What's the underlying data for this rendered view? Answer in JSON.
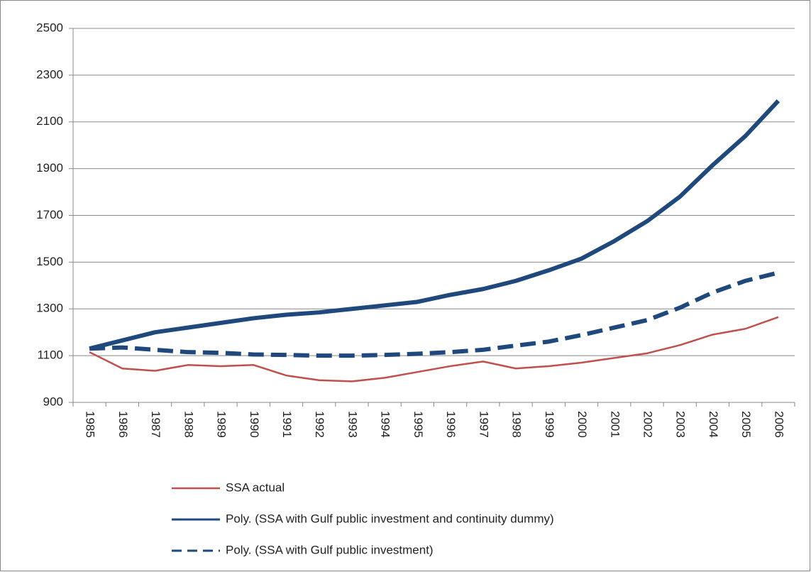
{
  "chart_data": {
    "type": "line",
    "categories": [
      "1985",
      "1986",
      "1987",
      "1988",
      "1989",
      "1990",
      "1991",
      "1992",
      "1993",
      "1994",
      "1995",
      "1996",
      "1997",
      "1998",
      "1999",
      "2000",
      "2001",
      "2002",
      "2003",
      "2004",
      "2005",
      "2006"
    ],
    "series": [
      {
        "name": "SSA actual",
        "color": "#c0504d",
        "style": "solid",
        "width": 2.5,
        "values": [
          1115,
          1045,
          1035,
          1060,
          1055,
          1060,
          1015,
          995,
          990,
          1005,
          1030,
          1055,
          1075,
          1045,
          1055,
          1070,
          1090,
          1110,
          1145,
          1190,
          1215,
          1265
        ]
      },
      {
        "name": "Poly. (SSA with Gulf public investment and continuity dummy)",
        "color": "#1f497d",
        "style": "solid",
        "width": 6,
        "values": [
          1130,
          1165,
          1200,
          1220,
          1240,
          1260,
          1275,
          1285,
          1300,
          1315,
          1330,
          1360,
          1385,
          1420,
          1465,
          1515,
          1590,
          1675,
          1780,
          1915,
          2040,
          2190
        ]
      },
      {
        "name": "Poly. (SSA with Gulf public investment)",
        "color": "#1f497d",
        "style": "dashed",
        "width": 6,
        "values": [
          1130,
          1135,
          1125,
          1115,
          1112,
          1105,
          1103,
          1100,
          1100,
          1103,
          1108,
          1115,
          1125,
          1143,
          1160,
          1188,
          1220,
          1252,
          1305,
          1370,
          1420,
          1455
        ]
      }
    ],
    "ylim": [
      900,
      2500
    ],
    "yticks": [
      900,
      1100,
      1300,
      1500,
      1700,
      1900,
      2100,
      2300,
      2500
    ],
    "grid": true
  }
}
